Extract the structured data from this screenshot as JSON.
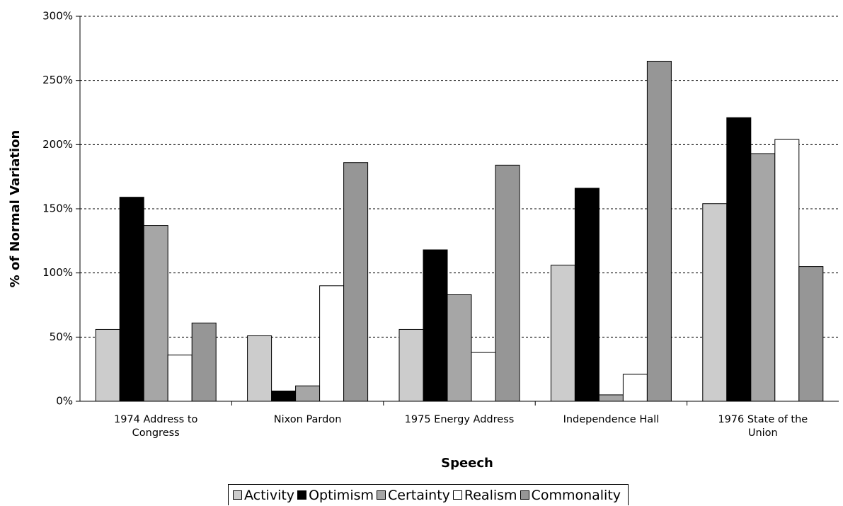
{
  "chart_data": {
    "type": "bar",
    "x_label": "Speech",
    "y_label": "% of Normal Variation",
    "categories": [
      "1974 Address to Congress",
      "Nixon Pardon",
      "1975 Energy Address",
      "Independence Hall",
      "1976 State of the Union"
    ],
    "series": [
      {
        "name": "Activity",
        "color": "#cccccc",
        "values": [
          56,
          51,
          56,
          106,
          154
        ]
      },
      {
        "name": "Optimism",
        "color": "#000000",
        "values": [
          159,
          8,
          118,
          166,
          221
        ]
      },
      {
        "name": "Certainty",
        "color": "#a6a6a6",
        "values": [
          137,
          12,
          83,
          5,
          193
        ]
      },
      {
        "name": "Realism",
        "color": "#ffffff",
        "values": [
          36,
          90,
          38,
          21,
          204
        ]
      },
      {
        "name": "Commonality",
        "color": "#969696",
        "values": [
          61,
          186,
          184,
          265,
          105
        ]
      }
    ],
    "ylim": [
      0,
      300
    ],
    "yticks": [
      {
        "value": 0,
        "label": "0%"
      },
      {
        "value": 50,
        "label": "50%"
      },
      {
        "value": 100,
        "label": "100%"
      },
      {
        "value": 150,
        "label": "150%"
      },
      {
        "value": 200,
        "label": "200%"
      },
      {
        "value": 250,
        "label": "250%"
      },
      {
        "value": 300,
        "label": "300%"
      }
    ],
    "grid": true,
    "legend": "bottom"
  }
}
